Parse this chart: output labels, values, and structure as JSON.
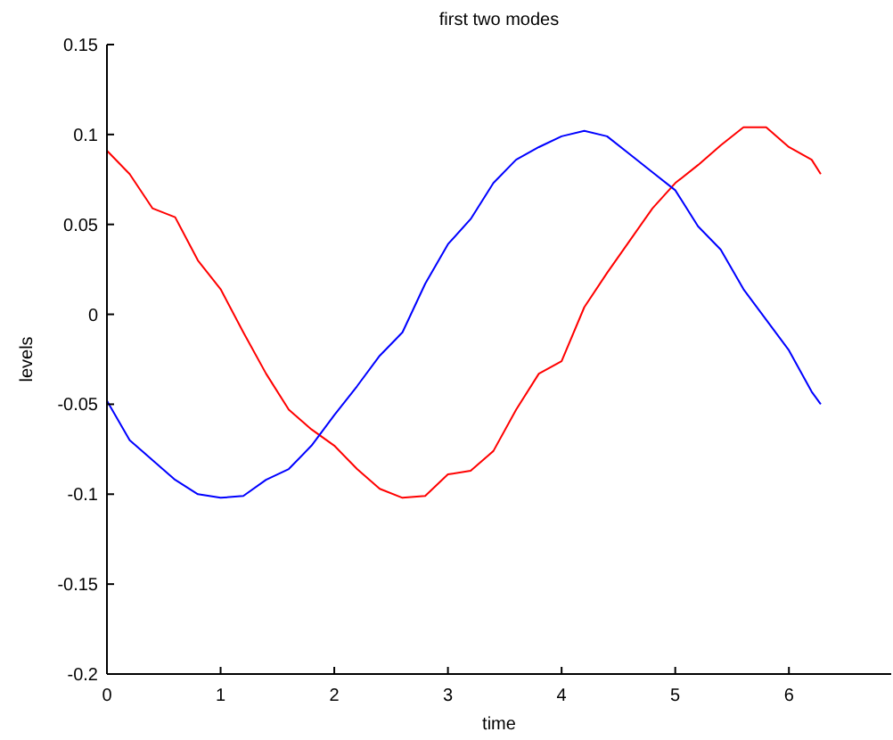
{
  "chart_data": {
    "type": "line",
    "title": "first two modes",
    "xlabel": "time",
    "ylabel": "levels",
    "x": [
      0,
      0.2,
      0.4,
      0.6,
      0.8,
      1,
      1.2,
      1.4,
      1.6,
      1.8,
      2,
      2.2,
      2.4,
      2.6,
      2.8,
      3,
      3.2,
      3.4,
      3.6,
      3.8,
      4,
      4.2,
      4.4,
      4.6,
      4.8,
      5,
      5.2,
      5.4,
      5.6,
      5.8,
      6,
      6.2,
      6.28
    ],
    "series": [
      {
        "color": "#ff0000",
        "values": [
          0.091,
          0.078,
          0.059,
          0.054,
          0.03,
          0.014,
          -0.01,
          -0.033,
          -0.053,
          -0.064,
          -0.073,
          -0.086,
          -0.097,
          -0.102,
          -0.101,
          -0.089,
          -0.087,
          -0.076,
          -0.053,
          -0.033,
          -0.026,
          0.004,
          0.023,
          0.041,
          0.059,
          0.073,
          0.083,
          0.094,
          0.104,
          0.104,
          0.093,
          0.086,
          0.078
        ]
      },
      {
        "color": "#0000ff",
        "values": [
          -0.048,
          -0.07,
          -0.081,
          -0.092,
          -0.1,
          -0.102,
          -0.101,
          -0.092,
          -0.086,
          -0.073,
          -0.056,
          -0.04,
          -0.023,
          -0.01,
          0.017,
          0.039,
          0.053,
          0.073,
          0.086,
          0.093,
          0.099,
          0.102,
          0.099,
          0.089,
          0.079,
          0.069,
          0.049,
          0.036,
          0.014,
          -0.003,
          -0.02,
          -0.043,
          -0.05
        ]
      }
    ],
    "xlim": [
      0,
      6.9
    ],
    "xticks": [
      0,
      1,
      2,
      3,
      4,
      5,
      6
    ],
    "ylim": [
      -0.2,
      0.15
    ],
    "yticks": [
      -0.2,
      -0.15,
      -0.1,
      -0.05,
      0,
      0.05,
      0.1,
      0.15
    ],
    "grid": false,
    "marker": "none",
    "line_style": "solid"
  }
}
